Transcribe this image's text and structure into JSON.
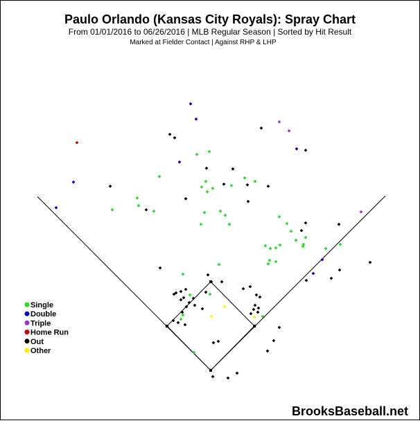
{
  "chart_data": {
    "type": "scatter",
    "title": "Paulo Orlando (Kansas City Royals): Spray Chart",
    "subtitle": "From 01/01/2016 to 06/26/2016 | MLB Regular Season | Sorted by Hit Result",
    "note": "Marked at Fielder Contact |   Against RHP & LHP",
    "watermark": "BrooksBaseball.net",
    "legend_position": "left",
    "categories": [
      {
        "name": "Single",
        "color": "#22dd22"
      },
      {
        "name": "Double",
        "color": "#0000cc"
      },
      {
        "name": "Triple",
        "color": "#9933cc"
      },
      {
        "name": "Home Run",
        "color": "#cc0000"
      },
      {
        "name": "Out",
        "color": "#000000"
      },
      {
        "name": "Other",
        "color": "#ffee00"
      }
    ],
    "series": [
      {
        "name": "Single",
        "points": [
          [
            283,
            222
          ],
          [
            301,
            218
          ],
          [
            229,
            254
          ],
          [
            296,
            261
          ],
          [
            290,
            269
          ],
          [
            298,
            276
          ],
          [
            306,
            271
          ],
          [
            333,
            267
          ],
          [
            352,
            256
          ],
          [
            367,
            261
          ],
          [
            197,
            285
          ],
          [
            199,
            296
          ],
          [
            221,
            304
          ],
          [
            161,
            302
          ],
          [
            294,
            306
          ],
          [
            317,
            304
          ],
          [
            324,
            310
          ],
          [
            330,
            323
          ],
          [
            289,
            323
          ],
          [
            413,
            322
          ],
          [
            402,
            312
          ],
          [
            419,
            333
          ],
          [
            440,
            342
          ],
          [
            437,
            352
          ],
          [
            426,
            346
          ],
          [
            436,
            355
          ],
          [
            469,
            358
          ],
          [
            490,
            352
          ],
          [
            403,
            353
          ],
          [
            397,
            357
          ],
          [
            389,
            358
          ],
          [
            382,
            354
          ],
          [
            388,
            375
          ],
          [
            386,
            380
          ],
          [
            397,
            377
          ],
          [
            315,
            381
          ],
          [
            263,
            395
          ],
          [
            273,
            425
          ],
          [
            263,
            454
          ],
          [
            260,
            460
          ],
          [
            302,
            424
          ],
          [
            378,
            456
          ],
          [
            279,
            508
          ]
        ]
      },
      {
        "name": "Double",
        "points": [
          [
            274,
            149
          ],
          [
            282,
            171
          ],
          [
            427,
            214
          ],
          [
            258,
            233
          ],
          [
            105,
            262
          ],
          [
            80,
            299
          ],
          [
            464,
            374
          ],
          [
            451,
            394
          ]
        ]
      },
      {
        "name": "Triple",
        "points": [
          [
            402,
            175
          ],
          [
            416,
            188
          ],
          [
            520,
            305
          ]
        ]
      },
      {
        "name": "Home Run",
        "points": [
          [
            110,
            205
          ]
        ]
      },
      {
        "name": "Out",
        "points": [
          [
            244,
            193
          ],
          [
            251,
            198
          ],
          [
            376,
            184
          ],
          [
            440,
            216
          ],
          [
            297,
            242
          ],
          [
            335,
            243
          ],
          [
            322,
            265
          ],
          [
            356,
            266
          ],
          [
            386,
            268
          ],
          [
            357,
            290
          ],
          [
            158,
            268
          ],
          [
            267,
            286
          ],
          [
            210,
            302
          ],
          [
            440,
            321
          ],
          [
            434,
            332
          ],
          [
            488,
            323
          ],
          [
            230,
            386
          ],
          [
            533,
            378
          ],
          [
            489,
            389
          ],
          [
            477,
            401
          ],
          [
            441,
            404
          ],
          [
            299,
            396
          ],
          [
            319,
            406
          ],
          [
            304,
            406
          ],
          [
            253,
            422
          ],
          [
            260,
            420
          ],
          [
            267,
            417
          ],
          [
            264,
            429
          ],
          [
            260,
            432
          ],
          [
            250,
            424
          ],
          [
            272,
            436
          ],
          [
            278,
            430
          ],
          [
            280,
            440
          ],
          [
            268,
            442
          ],
          [
            262,
            450
          ],
          [
            296,
            421
          ],
          [
            291,
            445
          ],
          [
            350,
            416
          ],
          [
            360,
            413
          ],
          [
            369,
            425
          ],
          [
            374,
            428
          ],
          [
            367,
            440
          ],
          [
            372,
            444
          ],
          [
            365,
            446
          ],
          [
            361,
            452
          ],
          [
            371,
            450
          ],
          [
            249,
            462
          ],
          [
            256,
            465
          ],
          [
            266,
            468
          ],
          [
            240,
            470
          ],
          [
            307,
            494
          ],
          [
            314,
            492
          ],
          [
            402,
            472
          ],
          [
            394,
            491
          ],
          [
            385,
            506
          ],
          [
            303,
            534
          ],
          [
            306,
            543
          ],
          [
            328,
            545
          ],
          [
            341,
            538
          ]
        ]
      },
      {
        "name": "Other",
        "points": [
          [
            323,
            442
          ],
          [
            304,
            456
          ],
          [
            366,
            457
          ]
        ]
      }
    ]
  }
}
